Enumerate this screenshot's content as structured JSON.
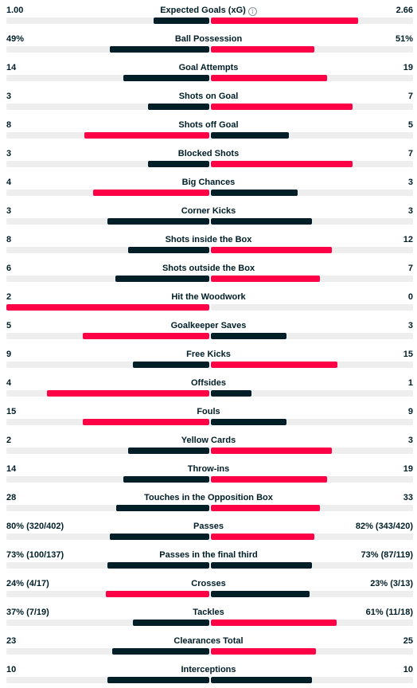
{
  "colors": {
    "winner": "#ff0046",
    "loser": "#001e28",
    "track": "#eeeeef"
  },
  "stats": [
    {
      "label": "Expected Goals (xG)",
      "home": "1.00",
      "away": "2.66",
      "home_share": 0.273,
      "away_share": 0.727,
      "winner": "away",
      "info_icon": "info-icon",
      "info_glyph": "i"
    },
    {
      "label": "Ball Possession",
      "home": "49%",
      "away": "51%",
      "home_share": 0.49,
      "away_share": 0.51,
      "winner": "away"
    },
    {
      "label": "Goal Attempts",
      "home": "14",
      "away": "19",
      "home_share": 0.424,
      "away_share": 0.576,
      "winner": "away"
    },
    {
      "label": "Shots on Goal",
      "home": "3",
      "away": "7",
      "home_share": 0.3,
      "away_share": 0.7,
      "winner": "away"
    },
    {
      "label": "Shots off Goal",
      "home": "8",
      "away": "5",
      "home_share": 0.615,
      "away_share": 0.385,
      "winner": "home"
    },
    {
      "label": "Blocked Shots",
      "home": "3",
      "away": "7",
      "home_share": 0.3,
      "away_share": 0.7,
      "winner": "away"
    },
    {
      "label": "Big Chances",
      "home": "4",
      "away": "3",
      "home_share": 0.571,
      "away_share": 0.429,
      "winner": "home"
    },
    {
      "label": "Corner Kicks",
      "home": "3",
      "away": "3",
      "home_share": 0.5,
      "away_share": 0.5,
      "winner": "none"
    },
    {
      "label": "Shots inside the Box",
      "home": "8",
      "away": "12",
      "home_share": 0.4,
      "away_share": 0.6,
      "winner": "away"
    },
    {
      "label": "Shots outside the Box",
      "home": "6",
      "away": "7",
      "home_share": 0.462,
      "away_share": 0.538,
      "winner": "away"
    },
    {
      "label": "Hit the Woodwork",
      "home": "2",
      "away": "0",
      "home_share": 1.0,
      "away_share": 0.0,
      "winner": "home"
    },
    {
      "label": "Goalkeeper Saves",
      "home": "5",
      "away": "3",
      "home_share": 0.625,
      "away_share": 0.375,
      "winner": "home"
    },
    {
      "label": "Free Kicks",
      "home": "9",
      "away": "15",
      "home_share": 0.375,
      "away_share": 0.625,
      "winner": "away"
    },
    {
      "label": "Offsides",
      "home": "4",
      "away": "1",
      "home_share": 0.8,
      "away_share": 0.2,
      "winner": "home"
    },
    {
      "label": "Fouls",
      "home": "15",
      "away": "9",
      "home_share": 0.625,
      "away_share": 0.375,
      "winner": "home"
    },
    {
      "label": "Yellow Cards",
      "home": "2",
      "away": "3",
      "home_share": 0.4,
      "away_share": 0.6,
      "winner": "away"
    },
    {
      "label": "Throw-ins",
      "home": "14",
      "away": "19",
      "home_share": 0.424,
      "away_share": 0.576,
      "winner": "away"
    },
    {
      "label": "Touches in the Opposition Box",
      "home": "28",
      "away": "33",
      "home_share": 0.459,
      "away_share": 0.541,
      "winner": "away"
    },
    {
      "label": "Passes",
      "home": "80% (320/402)",
      "away": "82% (343/420)",
      "home_share": 0.49,
      "away_share": 0.51,
      "winner": "away"
    },
    {
      "label": "Passes in the final third",
      "home": "73% (100/137)",
      "away": "73% (87/119)",
      "home_share": 0.5,
      "away_share": 0.5,
      "winner": "none"
    },
    {
      "label": "Crosses",
      "home": "24% (4/17)",
      "away": "23% (3/13)",
      "home_share": 0.51,
      "away_share": 0.49,
      "winner": "home"
    },
    {
      "label": "Tackles",
      "home": "37% (7/19)",
      "away": "61% (11/18)",
      "home_share": 0.378,
      "away_share": 0.622,
      "winner": "away"
    },
    {
      "label": "Clearances Total",
      "home": "23",
      "away": "25",
      "home_share": 0.479,
      "away_share": 0.521,
      "winner": "away"
    },
    {
      "label": "Interceptions",
      "home": "10",
      "away": "10",
      "home_share": 0.5,
      "away_share": 0.5,
      "winner": "none"
    }
  ]
}
